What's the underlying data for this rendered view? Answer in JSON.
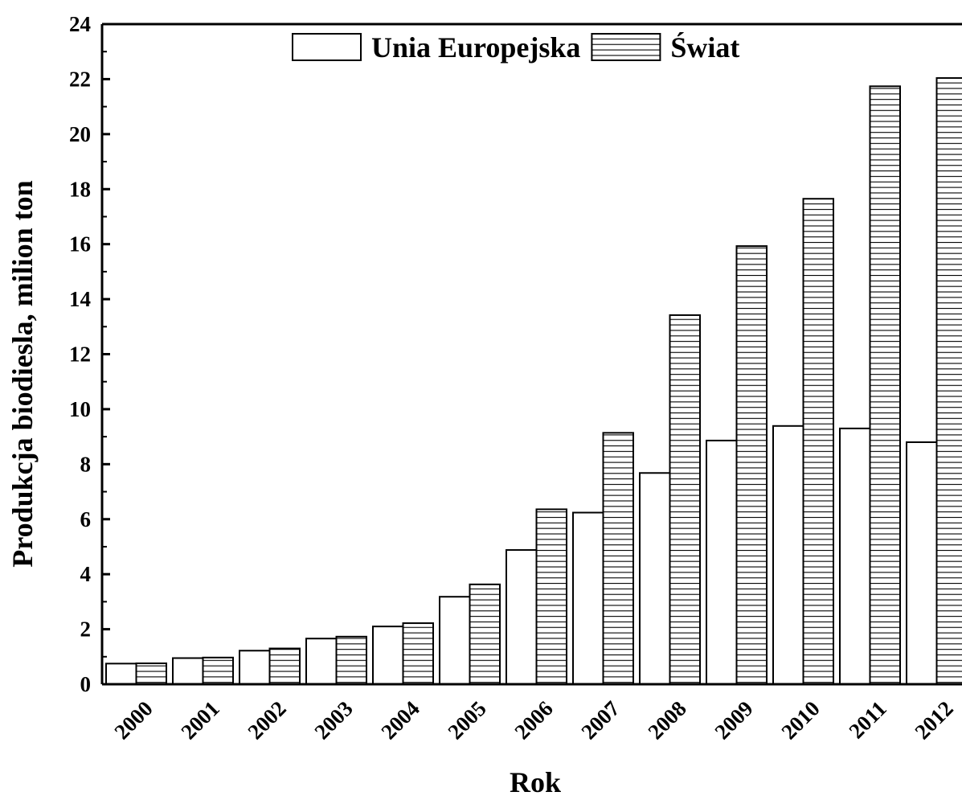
{
  "chart_data": {
    "type": "bar",
    "xlabel": "Rok",
    "ylabel": "Produkcja biodiesla, milion ton",
    "categories": [
      "2000",
      "2001",
      "2002",
      "2003",
      "2004",
      "2005",
      "2006",
      "2007",
      "2008",
      "2009",
      "2010",
      "2011",
      "2012"
    ],
    "series": [
      {
        "name": "Unia Europejska",
        "color": "#ffffff",
        "pattern": "none",
        "values": [
          0.75,
          0.95,
          1.22,
          1.66,
          2.1,
          3.18,
          4.88,
          6.24,
          7.68,
          8.86,
          9.39,
          9.3,
          8.8
        ]
      },
      {
        "name": "Świat",
        "color": "#ffffff",
        "pattern": "horizontal-lines",
        "values": [
          0.76,
          0.97,
          1.3,
          1.73,
          2.22,
          3.63,
          6.36,
          9.14,
          13.42,
          15.93,
          17.65,
          21.74,
          22.04
        ]
      }
    ],
    "ylim": [
      0,
      24
    ],
    "yticks": [
      0,
      2,
      4,
      6,
      8,
      10,
      12,
      14,
      16,
      18,
      20,
      22,
      24
    ],
    "legend": "top"
  }
}
